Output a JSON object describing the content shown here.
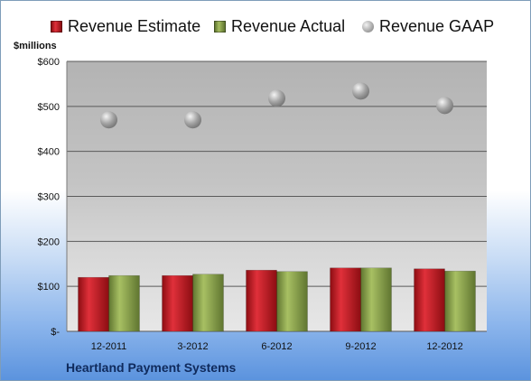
{
  "chart_data": {
    "type": "bar",
    "title": "",
    "ylabel": "$millions",
    "xlabel": "",
    "categories": [
      "12-2011",
      "3-2012",
      "6-2012",
      "9-2012",
      "12-2012"
    ],
    "series": [
      {
        "name": "Revenue Estimate",
        "kind": "bar",
        "color": "#c0141c",
        "values": [
          120,
          124,
          136,
          141,
          139
        ]
      },
      {
        "name": "Revenue Actual",
        "kind": "bar",
        "color": "#8aa349",
        "values": [
          124,
          127,
          133,
          141,
          134
        ]
      },
      {
        "name": "Revenue GAAP",
        "kind": "marker",
        "color": "#a6a6a6",
        "values": [
          470,
          470,
          518,
          534,
          502
        ]
      }
    ],
    "ylim": [
      0,
      600
    ],
    "yticks": [
      0,
      100,
      200,
      300,
      400,
      500,
      600
    ],
    "ytick_labels": [
      "$-",
      "$100",
      "$200",
      "$300",
      "$400",
      "$500",
      "$600"
    ],
    "grid": true,
    "legend_position": "top"
  },
  "footer": {
    "company": "Heartland Payment Systems"
  }
}
